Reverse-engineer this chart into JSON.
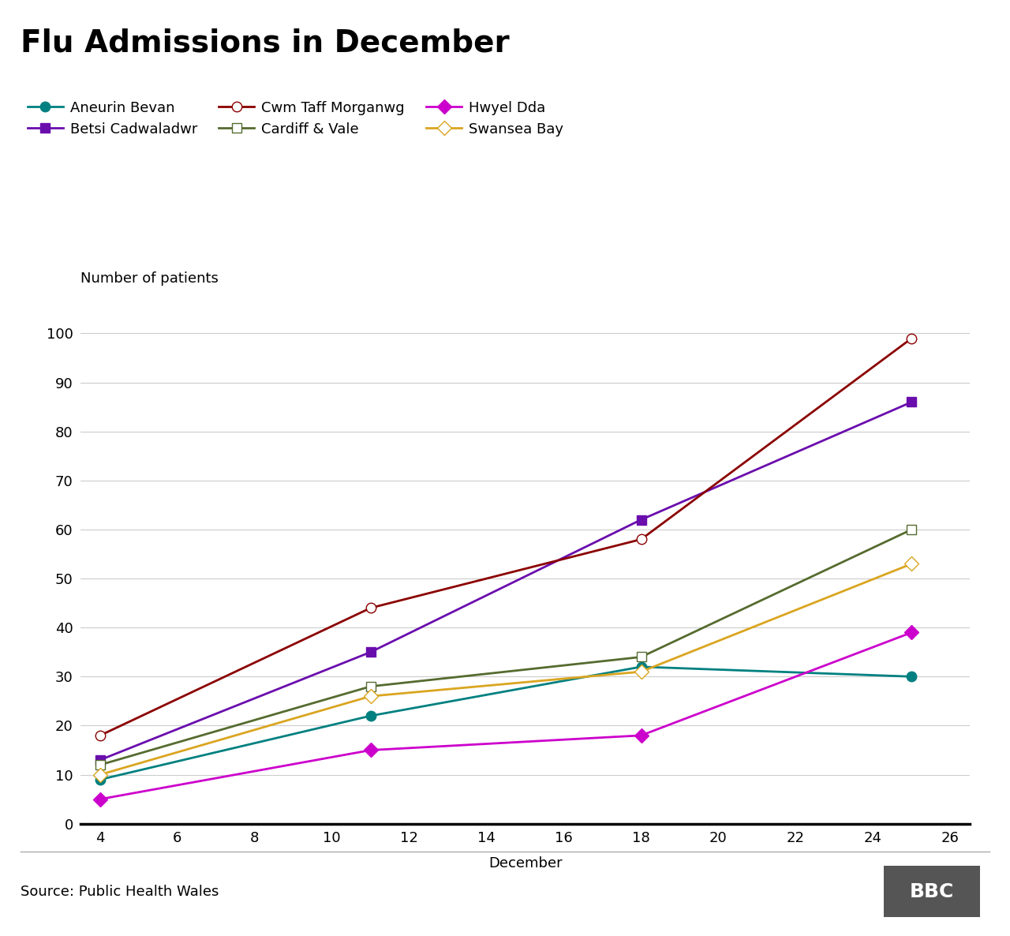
{
  "title": "Flu Admissions in December",
  "ylabel": "Number of patients",
  "xlabel": "December",
  "xlim": [
    3.5,
    26.5
  ],
  "ylim": [
    0,
    105
  ],
  "yticks": [
    0,
    10,
    20,
    30,
    40,
    50,
    60,
    70,
    80,
    90,
    100
  ],
  "xticks": [
    4,
    6,
    8,
    10,
    12,
    14,
    16,
    18,
    20,
    22,
    24,
    26
  ],
  "source": "Source: Public Health Wales",
  "series": [
    {
      "label": "Aneurin Bevan",
      "color": "#008080",
      "marker": "o",
      "markerfacecolor": "#008080",
      "x": [
        4,
        11,
        18,
        25
      ],
      "y": [
        9,
        22,
        32,
        30
      ]
    },
    {
      "label": "Betsi Cadwaladwr",
      "color": "#6A0DAD",
      "marker": "s",
      "markerfacecolor": "#6A0DAD",
      "x": [
        4,
        11,
        18,
        25
      ],
      "y": [
        13,
        35,
        62,
        86
      ]
    },
    {
      "label": "Cwm Taff Morganwg",
      "color": "#8B0000",
      "marker": "o",
      "markerfacecolor": "white",
      "x": [
        4,
        11,
        18,
        25
      ],
      "y": [
        18,
        44,
        58,
        99
      ]
    },
    {
      "label": "Cardiff & Vale",
      "color": "#556B2F",
      "marker": "s",
      "markerfacecolor": "white",
      "x": [
        4,
        11,
        18,
        25
      ],
      "y": [
        12,
        28,
        34,
        60
      ]
    },
    {
      "label": "Hwyel Dda",
      "color": "#CC00CC",
      "marker": "D",
      "markerfacecolor": "#CC00CC",
      "x": [
        4,
        11,
        18,
        25
      ],
      "y": [
        5,
        15,
        18,
        39
      ]
    },
    {
      "label": "Swansea Bay",
      "color": "#DAA520",
      "marker": "D",
      "markerfacecolor": "white",
      "x": [
        4,
        11,
        18,
        25
      ],
      "y": [
        10,
        26,
        31,
        53
      ]
    }
  ],
  "background_color": "#ffffff",
  "title_fontsize": 28,
  "label_fontsize": 13,
  "tick_fontsize": 13,
  "legend_fontsize": 13,
  "source_fontsize": 13
}
